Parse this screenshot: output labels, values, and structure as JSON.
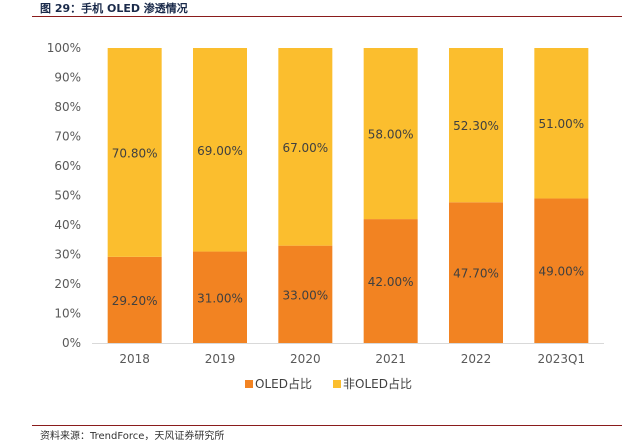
{
  "figure": {
    "title": "图 29：手机 OLED 渗透情况",
    "source": "资料来源：TrendForce，天风证券研究所"
  },
  "colors": {
    "oled": "#F28322",
    "non_oled": "#FBBE2E",
    "axis": "#d9d9d9",
    "rule": "#8a1c1c"
  },
  "chart_data": {
    "type": "bar",
    "stacked": true,
    "categories": [
      "2018",
      "2019",
      "2020",
      "2021",
      "2022",
      "2023Q1"
    ],
    "series": [
      {
        "name": "OLED占比",
        "values": [
          29.2,
          31.0,
          33.0,
          42.0,
          47.7,
          49.0
        ],
        "labels": [
          "29.20%",
          "31.00%",
          "33.00%",
          "42.00%",
          "47.70%",
          "49.00%"
        ]
      },
      {
        "name": "非OLED占比",
        "values": [
          70.8,
          69.0,
          67.0,
          58.0,
          52.3,
          51.0
        ],
        "labels": [
          "70.80%",
          "69.00%",
          "67.00%",
          "58.00%",
          "52.30%",
          "51.00%"
        ]
      }
    ],
    "yticks": [
      "0%",
      "10%",
      "20%",
      "30%",
      "40%",
      "50%",
      "60%",
      "70%",
      "80%",
      "90%",
      "100%"
    ],
    "ylim": [
      0,
      100
    ],
    "grid": false,
    "legend_position": "bottom"
  }
}
